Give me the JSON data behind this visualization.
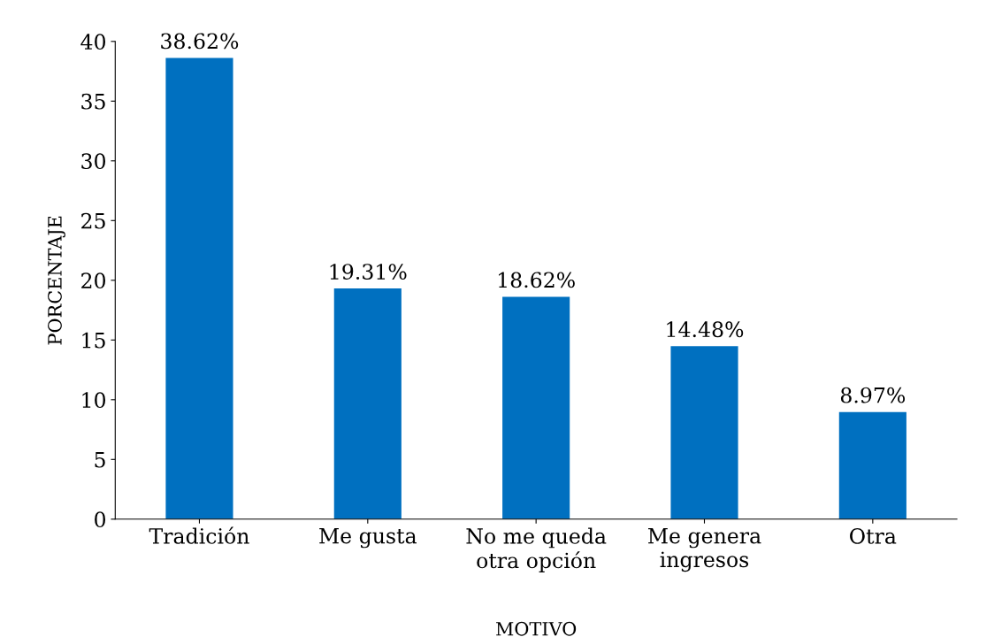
{
  "chart_data": {
    "type": "bar",
    "xlabel": "MOTIVO",
    "ylabel": "PORCENTAJE",
    "categories": [
      "Tradición",
      "Me gusta",
      "No me queda\notra opción",
      "Me genera\ningresos",
      "Otra"
    ],
    "values": [
      38.62,
      19.31,
      18.62,
      14.48,
      8.97
    ],
    "value_labels": [
      "38.62%",
      "19.31%",
      "18.62%",
      "14.48%",
      "8.97%"
    ],
    "color": "#0070c0",
    "ylim": [
      0,
      40
    ],
    "yticks": [
      0,
      5,
      10,
      15,
      20,
      25,
      30,
      35,
      40
    ],
    "grid": false
  }
}
